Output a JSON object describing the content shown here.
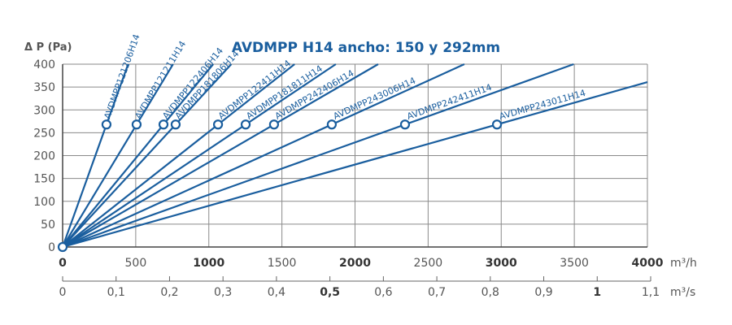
{
  "chart_data": {
    "type": "line",
    "title": "AVDMPP H14  ancho: 150 y 292mm",
    "ylabel": "Δ P (Pa)",
    "xlabel": "m³/h",
    "x2label": "m³/s",
    "xlim": [
      0,
      4000
    ],
    "ylim": [
      0,
      400
    ],
    "x2lim": [
      0,
      1.1
    ],
    "grid": true,
    "y_ticks": [
      "0",
      "50",
      "100",
      "150",
      "200",
      "250",
      "300",
      "350",
      "400"
    ],
    "x_ticks": [
      "0",
      "500",
      "1000",
      "1500",
      "2000",
      "2500",
      "3000",
      "3500",
      "4000"
    ],
    "x2_ticks": [
      "0",
      "0,1",
      "0,2",
      "0,3",
      "0,4",
      "0,5",
      "0,6",
      "0,7",
      "0,8",
      "0,9",
      "1",
      "1,1"
    ],
    "series": [
      {
        "name": "AVDMPP121206H14",
        "point": [
          300,
          268
        ]
      },
      {
        "name": "AVDMPP121211H14",
        "point": [
          506,
          268
        ]
      },
      {
        "name": "AVDMPP122406H14",
        "point": [
          690,
          268
        ]
      },
      {
        "name": "AVDMPP181806H14",
        "point": [
          773,
          268
        ]
      },
      {
        "name": "AVDMPP122411H14",
        "point": [
          1063,
          268
        ]
      },
      {
        "name": "AVDMPP181811H14",
        "point": [
          1252,
          268
        ]
      },
      {
        "name": "AVDMPP242406H14",
        "point": [
          1446,
          268
        ]
      },
      {
        "name": "AVDMPP243006H14",
        "point": [
          1841,
          268
        ]
      },
      {
        "name": "AVDMPP242411H14",
        "point": [
          2342,
          268
        ]
      },
      {
        "name": "AVDMPP243011H14",
        "point": [
          2971,
          268
        ]
      }
    ],
    "color": "#1a5e9e"
  }
}
